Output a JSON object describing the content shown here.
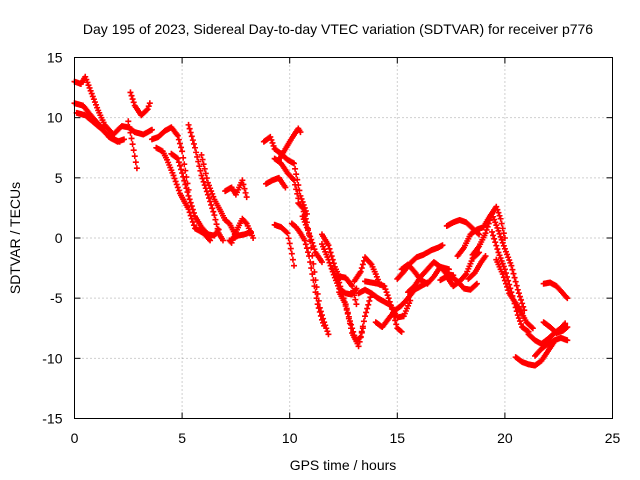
{
  "chart_data": {
    "type": "scatter",
    "title": "Day 195 of 2023, Sidereal Day-to-day VTEC variation (SDTVAR) for receiver p776",
    "xlabel": "GPS time / hours",
    "ylabel": "SDTVAR / TECUs",
    "xlim": [
      0,
      25
    ],
    "ylim": [
      -15,
      15
    ],
    "xticks": [
      0,
      5,
      10,
      15,
      20,
      25
    ],
    "yticks": [
      -15,
      -10,
      -5,
      0,
      5,
      10,
      15
    ],
    "grid": true,
    "marker": "plus",
    "color": "#ff0000",
    "tracks": [
      [
        [
          0.0,
          13.0
        ],
        [
          0.3,
          12.8
        ],
        [
          0.5,
          13.4
        ],
        [
          0.8,
          12.0
        ],
        [
          1.1,
          10.6
        ],
        [
          1.4,
          9.4
        ],
        [
          1.8,
          8.6
        ],
        [
          2.2,
          9.3
        ],
        [
          2.5,
          9.2
        ],
        [
          2.8,
          8.8
        ],
        [
          3.2,
          8.6
        ],
        [
          3.6,
          9.0
        ]
      ],
      [
        [
          0.0,
          11.2
        ],
        [
          0.4,
          11.0
        ],
        [
          0.8,
          10.1
        ],
        [
          1.2,
          9.3
        ],
        [
          1.6,
          8.4
        ],
        [
          2.0,
          8.0
        ],
        [
          2.3,
          8.2
        ]
      ],
      [
        [
          0.1,
          10.4
        ],
        [
          0.5,
          10.2
        ],
        [
          0.9,
          9.6
        ],
        [
          1.3,
          9.0
        ],
        [
          1.7,
          8.3
        ],
        [
          2.1,
          8.0
        ]
      ],
      [
        [
          2.5,
          9.7
        ],
        [
          2.7,
          7.8
        ],
        [
          2.9,
          5.8
        ]
      ],
      [
        [
          2.6,
          12.1
        ],
        [
          2.8,
          11.0
        ],
        [
          3.1,
          10.2
        ],
        [
          3.4,
          10.7
        ],
        [
          3.5,
          11.2
        ]
      ],
      [
        [
          3.6,
          8.2
        ],
        [
          3.9,
          8.4
        ],
        [
          4.2,
          8.9
        ],
        [
          4.5,
          9.2
        ],
        [
          4.8,
          8.5
        ],
        [
          5.0,
          7.2
        ],
        [
          5.3,
          4.0
        ]
      ],
      [
        [
          3.8,
          7.5
        ],
        [
          4.1,
          7.2
        ],
        [
          4.3,
          6.5
        ],
        [
          4.6,
          5.2
        ],
        [
          4.9,
          3.7
        ],
        [
          5.3,
          2.4
        ],
        [
          5.6,
          0.8
        ],
        [
          6.0,
          0.4
        ],
        [
          6.3,
          -0.2
        ]
      ],
      [
        [
          4.5,
          7.0
        ],
        [
          4.8,
          6.6
        ],
        [
          5.0,
          5.4
        ],
        [
          5.3,
          3.5
        ],
        [
          5.6,
          1.8
        ],
        [
          5.9,
          0.9
        ],
        [
          6.2,
          0.3
        ],
        [
          6.5,
          0.2
        ],
        [
          6.7,
          0.7
        ]
      ],
      [
        [
          5.3,
          9.4
        ],
        [
          5.6,
          7.5
        ],
        [
          5.9,
          5.2
        ],
        [
          6.2,
          3.6
        ],
        [
          6.5,
          1.9
        ],
        [
          6.7,
          0.4
        ],
        [
          6.9,
          -0.2
        ]
      ],
      [
        [
          5.9,
          6.9
        ],
        [
          6.2,
          4.6
        ],
        [
          6.5,
          3.2
        ],
        [
          6.8,
          2.2
        ],
        [
          7.0,
          1.5
        ],
        [
          7.2,
          1.2
        ],
        [
          7.5,
          0.2
        ]
      ],
      [
        [
          7.0,
          3.9
        ],
        [
          7.3,
          4.2
        ],
        [
          7.5,
          3.6
        ],
        [
          7.8,
          4.8
        ],
        [
          8.0,
          3.4
        ]
      ],
      [
        [
          7.2,
          -0.2
        ],
        [
          7.3,
          -0.4
        ],
        [
          7.5,
          0.5
        ],
        [
          7.8,
          1.6
        ],
        [
          8.0,
          1.2
        ],
        [
          8.3,
          0.0
        ]
      ],
      [
        [
          7.3,
          -0.1
        ],
        [
          7.6,
          0.2
        ],
        [
          7.9,
          0.3
        ],
        [
          8.2,
          0.5
        ]
      ],
      [
        [
          8.8,
          8.0
        ],
        [
          9.1,
          8.4
        ],
        [
          9.3,
          7.4
        ],
        [
          9.6,
          7.0
        ],
        [
          9.9,
          6.5
        ],
        [
          10.2,
          6.2
        ],
        [
          10.5,
          3.5
        ],
        [
          10.8,
          2.0
        ]
      ],
      [
        [
          8.9,
          4.5
        ],
        [
          9.2,
          4.8
        ],
        [
          9.5,
          5.0
        ],
        [
          9.8,
          4.2
        ]
      ],
      [
        [
          9.5,
          6.5
        ],
        [
          9.8,
          7.4
        ],
        [
          10.1,
          8.3
        ],
        [
          10.4,
          9.1
        ],
        [
          10.5,
          8.8
        ]
      ],
      [
        [
          9.3,
          6.6
        ],
        [
          9.6,
          6.2
        ],
        [
          9.9,
          5.4
        ],
        [
          10.2,
          4.8
        ],
        [
          10.4,
          3.3
        ]
      ],
      [
        [
          9.3,
          1.1
        ],
        [
          9.6,
          0.9
        ],
        [
          9.9,
          0.4
        ],
        [
          10.1,
          -1.3
        ],
        [
          10.2,
          -2.3
        ]
      ],
      [
        [
          10.1,
          1.2
        ],
        [
          10.3,
          0.9
        ],
        [
          10.5,
          0.4
        ],
        [
          10.7,
          -0.2
        ],
        [
          10.9,
          -1.5
        ],
        [
          11.1,
          -3.5
        ],
        [
          11.3,
          -5.5
        ],
        [
          11.5,
          -6.8
        ],
        [
          11.6,
          -7.3
        ]
      ],
      [
        [
          10.4,
          2.9
        ],
        [
          10.6,
          2.5
        ],
        [
          10.8,
          1.3
        ],
        [
          11.0,
          -0.8
        ],
        [
          11.2,
          -3.5
        ],
        [
          11.4,
          -5.8
        ],
        [
          11.6,
          -7.0
        ],
        [
          11.8,
          -8.0
        ]
      ],
      [
        [
          10.6,
          1.8
        ],
        [
          10.9,
          0.4
        ],
        [
          11.2,
          -1.2
        ],
        [
          11.5,
          -2.0
        ]
      ],
      [
        [
          11.5,
          0.3
        ],
        [
          11.8,
          -0.6
        ],
        [
          12.1,
          -2.4
        ],
        [
          12.3,
          -3.2
        ],
        [
          12.6,
          -3.3
        ],
        [
          12.9,
          -4.0
        ],
        [
          13.1,
          -5.5
        ]
      ],
      [
        [
          11.5,
          -0.5
        ],
        [
          11.8,
          -1.8
        ],
        [
          12.1,
          -3.3
        ],
        [
          12.3,
          -4.2
        ],
        [
          12.6,
          -4.6
        ],
        [
          12.9,
          -4.7
        ],
        [
          13.1,
          -4.2
        ]
      ],
      [
        [
          12.0,
          -2.6
        ],
        [
          12.3,
          -3.7
        ],
        [
          12.5,
          -5.0
        ],
        [
          12.7,
          -6.3
        ],
        [
          12.9,
          -7.9
        ],
        [
          13.1,
          -8.6
        ],
        [
          13.3,
          -8.2
        ],
        [
          13.5,
          -6.5
        ],
        [
          13.8,
          -4.6
        ]
      ],
      [
        [
          12.3,
          -4.5
        ],
        [
          12.6,
          -5.5
        ],
        [
          12.8,
          -6.9
        ],
        [
          13.0,
          -8.1
        ],
        [
          13.2,
          -9.0
        ],
        [
          13.4,
          -7.5
        ]
      ],
      [
        [
          13.0,
          -3.6
        ],
        [
          13.3,
          -2.8
        ],
        [
          13.5,
          -1.6
        ],
        [
          13.8,
          -2.2
        ],
        [
          14.0,
          -3.0
        ],
        [
          14.2,
          -3.9
        ]
      ],
      [
        [
          13.2,
          -4.6
        ],
        [
          13.5,
          -4.3
        ],
        [
          13.8,
          -4.6
        ],
        [
          14.1,
          -5.0
        ],
        [
          14.4,
          -5.3
        ],
        [
          14.7,
          -5.6
        ],
        [
          15.0,
          -6.6
        ],
        [
          15.3,
          -6.5
        ],
        [
          15.6,
          -5.2
        ]
      ],
      [
        [
          13.5,
          -3.6
        ],
        [
          13.8,
          -3.7
        ],
        [
          14.1,
          -3.8
        ],
        [
          14.4,
          -4.0
        ],
        [
          14.6,
          -5.0
        ],
        [
          14.8,
          -6.2
        ],
        [
          15.0,
          -7.5
        ],
        [
          15.2,
          -7.8
        ]
      ],
      [
        [
          14.0,
          -7.0
        ],
        [
          14.3,
          -7.4
        ],
        [
          14.6,
          -6.7
        ],
        [
          14.9,
          -6.0
        ],
        [
          15.2,
          -5.6
        ],
        [
          15.5,
          -5.0
        ],
        [
          15.8,
          -4.3
        ],
        [
          16.1,
          -4.0
        ],
        [
          16.4,
          -3.7
        ]
      ],
      [
        [
          15.0,
          -3.4
        ],
        [
          15.3,
          -2.8
        ],
        [
          15.6,
          -2.1
        ],
        [
          15.9,
          -1.6
        ],
        [
          16.2,
          -1.4
        ],
        [
          16.6,
          -1.0
        ],
        [
          16.9,
          -0.8
        ],
        [
          17.1,
          -0.6
        ]
      ],
      [
        [
          15.2,
          -2.6
        ],
        [
          15.5,
          -2.2
        ],
        [
          15.8,
          -2.8
        ],
        [
          16.1,
          -3.5
        ],
        [
          16.4,
          -3.8
        ],
        [
          16.7,
          -3.2
        ],
        [
          17.0,
          -2.4
        ],
        [
          17.4,
          -2.6
        ]
      ],
      [
        [
          15.5,
          -4.5
        ],
        [
          15.8,
          -4.0
        ],
        [
          16.1,
          -3.2
        ],
        [
          16.4,
          -2.6
        ],
        [
          16.7,
          -2.0
        ],
        [
          17.0,
          -2.4
        ],
        [
          17.3,
          -3.0
        ],
        [
          17.6,
          -3.1
        ]
      ],
      [
        [
          17.0,
          -3.5
        ],
        [
          17.3,
          -3.2
        ],
        [
          17.6,
          -4.0
        ],
        [
          17.9,
          -3.6
        ],
        [
          18.2,
          -3.0
        ],
        [
          18.5,
          -1.7
        ],
        [
          18.8,
          -1.2
        ]
      ],
      [
        [
          17.5,
          -3.2
        ],
        [
          17.8,
          -3.6
        ],
        [
          18.1,
          -4.2
        ],
        [
          18.4,
          -4.3
        ],
        [
          18.7,
          -3.8
        ]
      ],
      [
        [
          17.3,
          1.0
        ],
        [
          17.6,
          1.3
        ],
        [
          17.9,
          1.5
        ],
        [
          18.2,
          1.3
        ],
        [
          18.5,
          0.8
        ],
        [
          18.8,
          0.3
        ]
      ],
      [
        [
          17.8,
          -1.5
        ],
        [
          18.1,
          -0.8
        ],
        [
          18.4,
          0.3
        ],
        [
          18.7,
          0.7
        ],
        [
          19.0,
          0.9
        ],
        [
          19.3,
          1.8
        ],
        [
          19.6,
          2.6
        ],
        [
          19.8,
          1.6
        ],
        [
          20.0,
          0.0
        ]
      ],
      [
        [
          18.3,
          -3.4
        ],
        [
          18.6,
          -2.9
        ],
        [
          18.9,
          -2.0
        ],
        [
          19.1,
          -1.5
        ]
      ],
      [
        [
          18.5,
          -1.4
        ],
        [
          18.8,
          -0.7
        ],
        [
          19.1,
          0.4
        ],
        [
          19.4,
          2.0
        ],
        [
          19.7,
          0.6
        ],
        [
          20.0,
          -0.9
        ],
        [
          20.3,
          -2.3
        ],
        [
          20.6,
          -4.3
        ],
        [
          20.9,
          -6.0
        ]
      ],
      [
        [
          19.4,
          0.5
        ],
        [
          19.7,
          -1.2
        ],
        [
          20.0,
          -2.6
        ],
        [
          20.3,
          -4.5
        ],
        [
          20.6,
          -6.4
        ],
        [
          20.8,
          -7.4
        ],
        [
          21.1,
          -7.8
        ]
      ],
      [
        [
          19.6,
          -1.8
        ],
        [
          19.9,
          -3.0
        ],
        [
          20.2,
          -4.6
        ],
        [
          20.5,
          -5.4
        ],
        [
          20.8,
          -6.3
        ],
        [
          21.0,
          -7.0
        ],
        [
          21.3,
          -7.5
        ]
      ],
      [
        [
          20.5,
          -9.9
        ],
        [
          20.8,
          -10.3
        ],
        [
          21.1,
          -10.5
        ],
        [
          21.4,
          -10.6
        ],
        [
          21.7,
          -10.2
        ],
        [
          22.0,
          -9.4
        ],
        [
          22.3,
          -8.6
        ]
      ],
      [
        [
          21.1,
          -8.0
        ],
        [
          21.4,
          -8.5
        ],
        [
          21.7,
          -8.8
        ],
        [
          22.0,
          -8.4
        ],
        [
          22.3,
          -7.9
        ],
        [
          22.6,
          -7.5
        ],
        [
          22.8,
          -7.1
        ]
      ],
      [
        [
          21.4,
          -9.8
        ],
        [
          21.7,
          -9.2
        ],
        [
          22.0,
          -8.8
        ],
        [
          22.3,
          -8.5
        ],
        [
          22.6,
          -8.3
        ],
        [
          22.9,
          -8.5
        ]
      ],
      [
        [
          21.8,
          -7.0
        ],
        [
          22.1,
          -7.4
        ],
        [
          22.4,
          -7.9
        ],
        [
          22.7,
          -7.7
        ],
        [
          22.9,
          -7.4
        ]
      ],
      [
        [
          21.8,
          -3.8
        ],
        [
          22.1,
          -3.7
        ],
        [
          22.4,
          -4.0
        ],
        [
          22.7,
          -4.6
        ],
        [
          22.9,
          -5.0
        ]
      ]
    ]
  }
}
